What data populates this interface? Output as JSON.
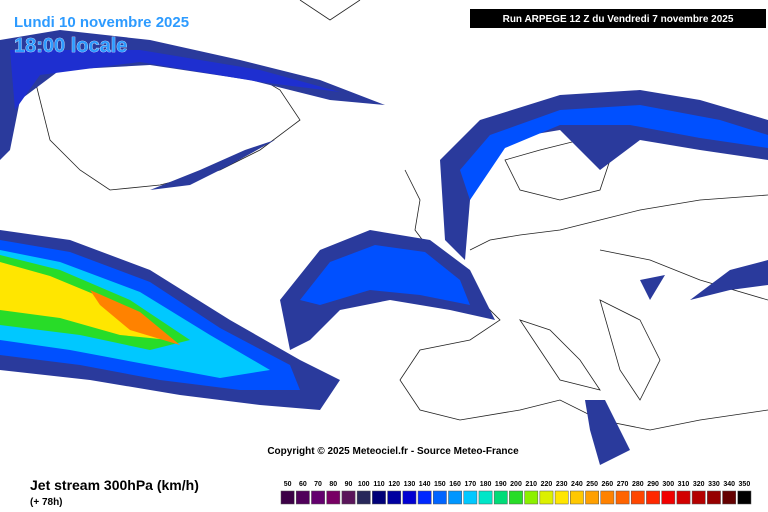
{
  "header": {
    "date": "Lundi 10 novembre 2025",
    "time": "18:00 locale",
    "run": "Run ARPEGE 12 Z du Vendredi 7 novembre 2025"
  },
  "copyright": "Copyright © 2025 Meteociel.fr - Source Meteo-France",
  "footer": {
    "title": "Jet stream 300hPa (km/h)",
    "lead": "(+ 78h)"
  },
  "scale": {
    "labels": [
      50,
      60,
      70,
      80,
      90,
      100,
      110,
      120,
      130,
      140,
      150,
      160,
      170,
      180,
      190,
      200,
      210,
      220,
      230,
      240,
      250,
      260,
      270,
      280,
      290,
      300,
      310,
      320,
      330,
      340,
      350
    ],
    "colors": [
      "#3c0046",
      "#50005a",
      "#64006e",
      "#780064",
      "#5a145a",
      "#28285a",
      "#000078",
      "#0000a0",
      "#0000d2",
      "#0028ff",
      "#0064ff",
      "#0096ff",
      "#00c8ff",
      "#00e6c8",
      "#00dc78",
      "#28dc28",
      "#8cf000",
      "#dcf000",
      "#ffe600",
      "#ffc800",
      "#ffa000",
      "#ff8200",
      "#ff6400",
      "#ff4600",
      "#ff2800",
      "#f00000",
      "#d20000",
      "#b40000",
      "#960000",
      "#640000",
      "#000000"
    ]
  }
}
